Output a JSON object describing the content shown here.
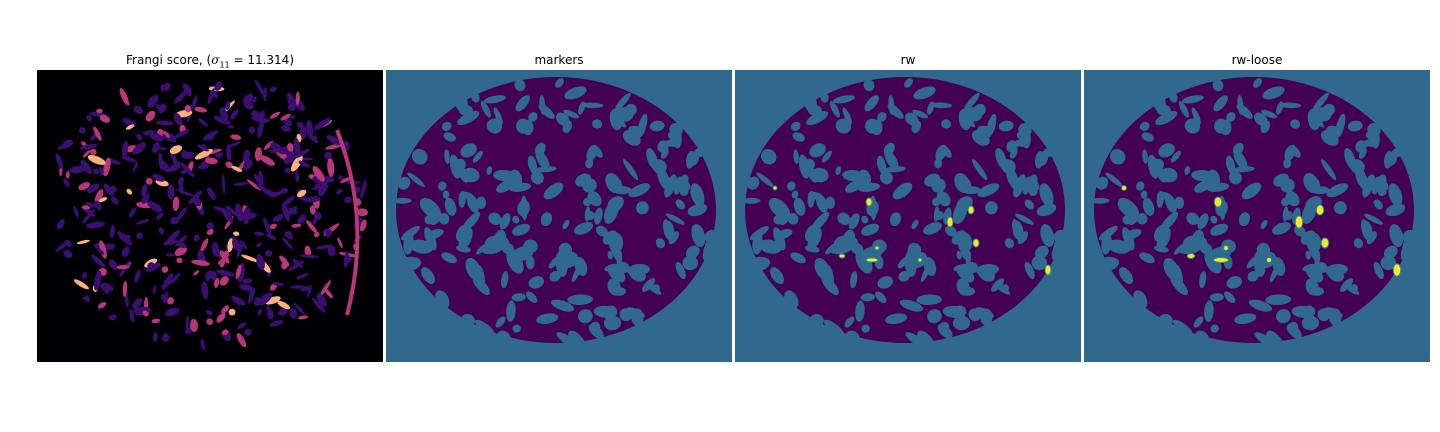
{
  "panels": [
    {
      "key": "frangi",
      "title_prefix": "Frangi score, (",
      "title_math": "σ",
      "title_sub": "11",
      "title_suffix": " = 11.314)",
      "colormap": "magma"
    },
    {
      "key": "markers",
      "title": "markers",
      "colormap": "viridis-2"
    },
    {
      "key": "rw",
      "title": "rw",
      "colormap": "viridis-3"
    },
    {
      "key": "rw_loose",
      "title": "rw-loose",
      "colormap": "viridis-3"
    }
  ],
  "colors": {
    "frangi_bg": "#000004",
    "frangi_mid": "#3b0f70",
    "frangi_high": "#b73779",
    "frangi_peak": "#fcb17f",
    "marker_bg": "#31688e",
    "marker_fg": "#440154",
    "highlight": "#fde725",
    "highlight_edge": "#21918c"
  }
}
